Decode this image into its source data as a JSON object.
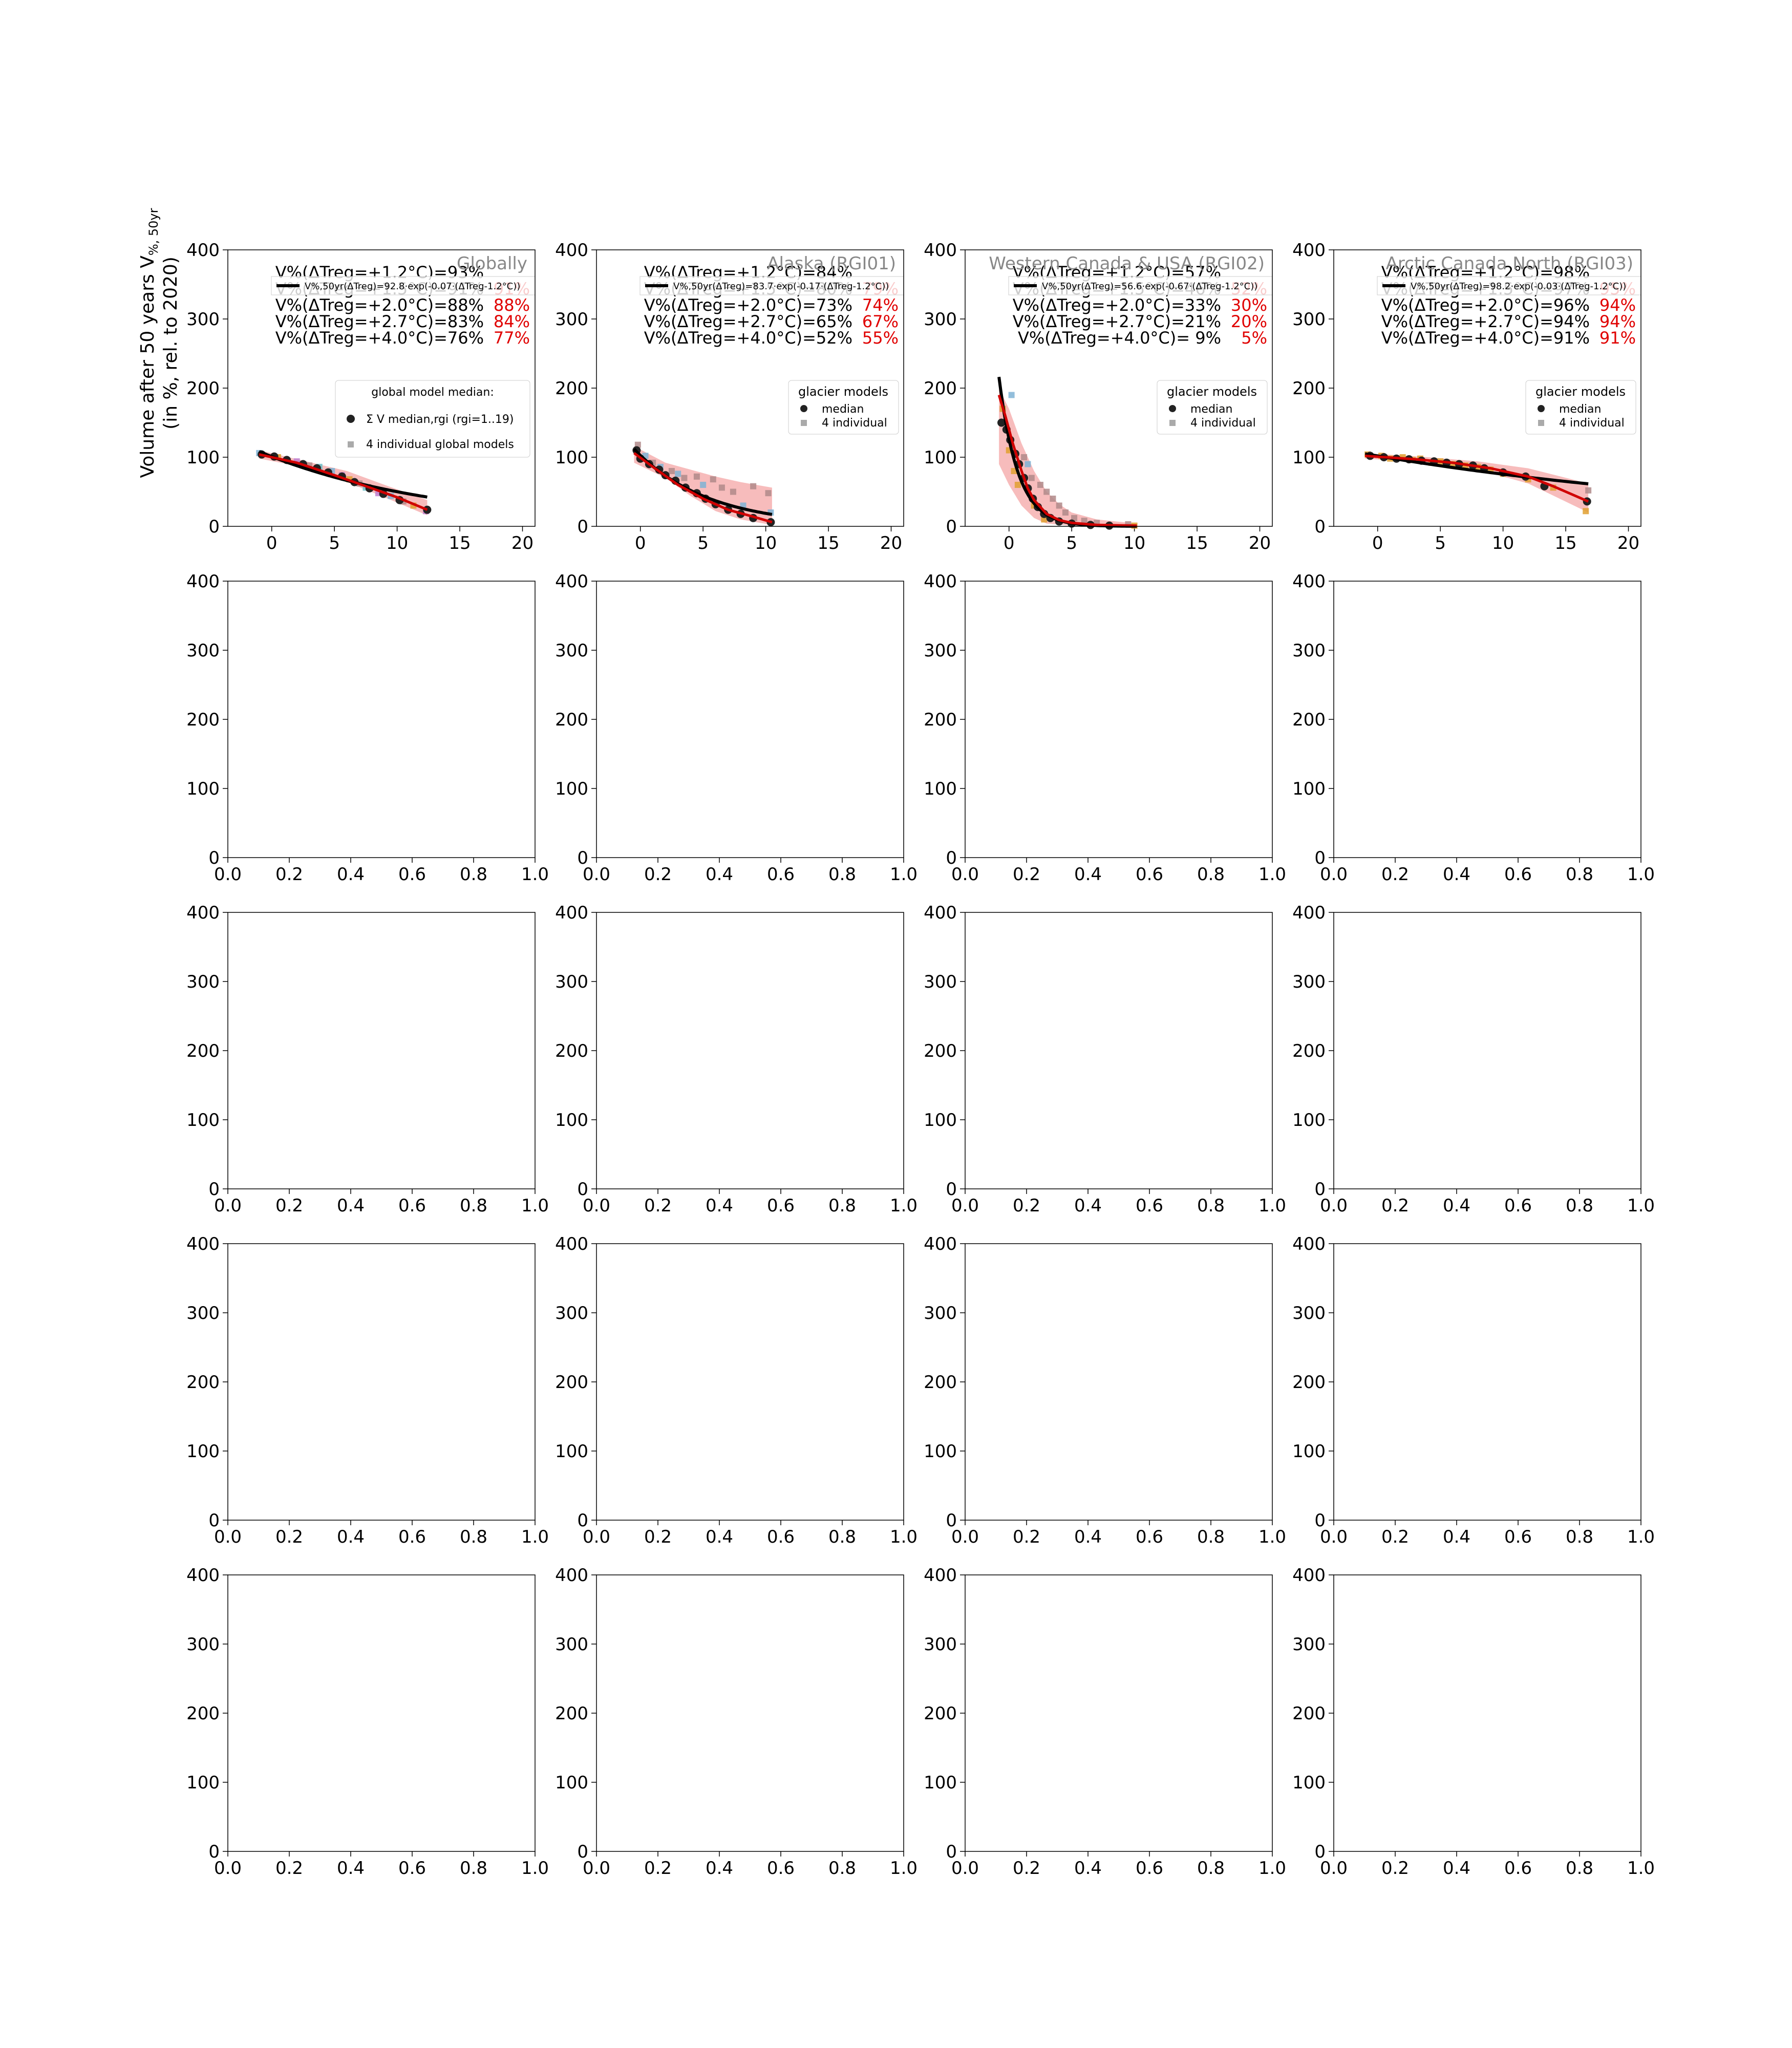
{
  "figure": {
    "ylabel_line1": "Volume after 50 years V",
    "ylabel_sub": "%, 50yr",
    "ylabel_line2": "(in %, rel. to 2020)"
  },
  "colors": {
    "fit_exp": "#000000",
    "fit_median": "#d00000",
    "band": "#f4a0a0",
    "median_marker": "#222222",
    "individual_marker": "#aaaaaa",
    "model_colors": [
      "#7fb3d5",
      "#e0a030",
      "#c080d0",
      "#b08a8a",
      "#6fc0c8"
    ],
    "percent_text": "#e00000",
    "title_text": "#888888"
  },
  "chart_data": [
    {
      "type": "scatter",
      "title": "Globally",
      "xlim": [
        -3.5,
        21
      ],
      "ylim": [
        0,
        400
      ],
      "xticks": [
        0,
        5,
        10,
        15,
        20
      ],
      "yticks": [
        0,
        100,
        200,
        300,
        400
      ],
      "legend_fit": "V%,50yr(ΔTreg)=92.8·exp(-0.07·(ΔTreg-1.2°C))",
      "legend_title": "global model median:",
      "legend_median": "Σ V median,rgi (rgi=1..19)",
      "legend_individual": "4 individual global models",
      "fit": {
        "a": 92.8,
        "b": 0.07,
        "x0": 1.2,
        "xmin": -1,
        "xmax": 12.4
      },
      "median_curve": [
        [
          -1,
          104
        ],
        [
          2,
          92
        ],
        [
          5,
          74
        ],
        [
          8,
          55
        ],
        [
          10,
          42
        ],
        [
          12.4,
          24
        ]
      ],
      "band": {
        "upper": [
          [
            -1,
            110
          ],
          [
            3,
            93
          ],
          [
            6,
            80
          ],
          [
            9,
            60
          ],
          [
            12.4,
            38
          ]
        ],
        "lower": [
          [
            -1,
            98
          ],
          [
            3,
            84
          ],
          [
            6,
            64
          ],
          [
            9,
            42
          ],
          [
            12.4,
            16
          ]
        ]
      },
      "median_points": [
        [
          -0.8,
          104
        ],
        [
          0.2,
          101
        ],
        [
          1.2,
          96
        ],
        [
          2.5,
          90
        ],
        [
          3.6,
          84
        ],
        [
          4.5,
          78
        ],
        [
          5.6,
          72
        ],
        [
          6.6,
          64
        ],
        [
          7.8,
          55
        ],
        [
          8.9,
          47
        ],
        [
          10.2,
          38
        ],
        [
          12.4,
          24
        ]
      ],
      "individual_points": [
        [
          -1,
          106,
          0
        ],
        [
          0.5,
          100,
          1
        ],
        [
          2,
          94,
          2
        ],
        [
          3,
          88,
          3
        ],
        [
          3.8,
          86,
          4
        ],
        [
          4.8,
          80,
          0
        ],
        [
          5.6,
          74,
          2
        ],
        [
          6.2,
          68,
          1
        ],
        [
          7,
          62,
          3
        ],
        [
          7.5,
          56,
          4
        ],
        [
          8.5,
          48,
          2
        ],
        [
          9.5,
          44,
          0
        ],
        [
          10.5,
          36,
          3
        ],
        [
          11.3,
          30,
          1
        ],
        [
          12.3,
          22,
          2
        ]
      ],
      "annot": [
        {
          "label": "V%(ΔTreg=+1.2°C)=93%",
          "pct": ""
        },
        {
          "label": "V%(ΔTreg=+1.5°C)=91%",
          "pct": "91%"
        },
        {
          "label": "V%(ΔTreg=+2.0°C)=88%",
          "pct": "88%"
        },
        {
          "label": "V%(ΔTreg=+2.7°C)=83%",
          "pct": "84%"
        },
        {
          "label": "V%(ΔTreg=+4.0°C)=76%",
          "pct": "77%"
        }
      ]
    },
    {
      "type": "scatter",
      "title": "Alaska (RGI01)",
      "xlim": [
        -3.5,
        21
      ],
      "ylim": [
        0,
        400
      ],
      "xticks": [
        0,
        5,
        10,
        15,
        20
      ],
      "yticks": [
        0,
        100,
        200,
        300,
        400
      ],
      "legend_fit": "V%,50yr(ΔTreg)=83.7·exp(-0.17·(ΔTreg-1.2°C))",
      "legend_title": "glacier models",
      "legend_median": "median",
      "legend_individual": "4 individual",
      "fit": {
        "a": 83.7,
        "b": 0.17,
        "x0": 1.2,
        "xmin": -0.5,
        "xmax": 10.5
      },
      "median_curve": [
        [
          -0.5,
          106
        ],
        [
          1,
          86
        ],
        [
          3,
          60
        ],
        [
          5,
          40
        ],
        [
          7,
          24
        ],
        [
          9,
          14
        ],
        [
          10.5,
          6
        ]
      ],
      "band": {
        "upper": [
          [
            -0.5,
            116
          ],
          [
            2,
            92
          ],
          [
            4,
            82
          ],
          [
            6,
            72
          ],
          [
            8,
            64
          ],
          [
            10.5,
            56
          ]
        ],
        "lower": [
          [
            -0.5,
            92
          ],
          [
            2,
            70
          ],
          [
            4,
            44
          ],
          [
            6,
            22
          ],
          [
            8,
            10
          ],
          [
            10.5,
            2
          ]
        ]
      },
      "median_points": [
        [
          -0.3,
          110
        ],
        [
          0,
          98
        ],
        [
          0.7,
          90
        ],
        [
          1.5,
          82
        ],
        [
          2,
          74
        ],
        [
          2.8,
          66
        ],
        [
          3.6,
          56
        ],
        [
          4.5,
          48
        ],
        [
          5.2,
          40
        ],
        [
          6,
          32
        ],
        [
          7,
          24
        ],
        [
          8,
          18
        ],
        [
          9,
          12
        ],
        [
          10.4,
          6
        ]
      ],
      "individual_points": [
        [
          -0.2,
          118,
          3
        ],
        [
          0.4,
          102,
          0
        ],
        [
          1,
          92,
          3
        ],
        [
          1.6,
          86,
          0
        ],
        [
          2.5,
          80,
          3
        ],
        [
          3,
          76,
          0
        ],
        [
          3.5,
          70,
          3
        ],
        [
          4.5,
          72,
          3
        ],
        [
          5,
          60,
          0
        ],
        [
          5.8,
          68,
          3
        ],
        [
          6.5,
          56,
          3
        ],
        [
          7.4,
          50,
          3
        ],
        [
          8.2,
          30,
          0
        ],
        [
          9,
          58,
          3
        ],
        [
          10.2,
          48,
          3
        ],
        [
          10.4,
          20,
          0
        ]
      ],
      "annot": [
        {
          "label": "V%(ΔTreg=+1.2°C)=84%",
          "pct": ""
        },
        {
          "label": "V%(ΔTreg=+1.5°C)=80%",
          "pct": "79%"
        },
        {
          "label": "V%(ΔTreg=+2.0°C)=73%",
          "pct": "74%"
        },
        {
          "label": "V%(ΔTreg=+2.7°C)=65%",
          "pct": "67%"
        },
        {
          "label": "V%(ΔTreg=+4.0°C)=52%",
          "pct": "55%"
        }
      ]
    },
    {
      "type": "scatter",
      "title": "Western Canada & USA (RGI02)",
      "xlim": [
        -3.5,
        21
      ],
      "ylim": [
        0,
        400
      ],
      "xticks": [
        0,
        5,
        10,
        15,
        20
      ],
      "yticks": [
        0,
        100,
        200,
        300,
        400
      ],
      "legend_fit": "V%,50yr(ΔTreg)=56.6·exp(-0.67·(ΔTreg-1.2°C))",
      "legend_title": "glacier models",
      "legend_median": "median",
      "legend_individual": "4 individual",
      "fit": {
        "a": 56.6,
        "b": 0.67,
        "x0": 1.2,
        "xmin": -0.8,
        "xmax": 10.2
      },
      "median_curve": [
        [
          -0.8,
          190
        ],
        [
          -0.3,
          160
        ],
        [
          0.3,
          120
        ],
        [
          1,
          80
        ],
        [
          1.5,
          55
        ],
        [
          2,
          38
        ],
        [
          3,
          18
        ],
        [
          4,
          9
        ],
        [
          5,
          5
        ],
        [
          7,
          2
        ],
        [
          10.2,
          1
        ]
      ],
      "band": {
        "upper": [
          [
            -0.8,
            200
          ],
          [
            0,
            170
          ],
          [
            1,
            120
          ],
          [
            2,
            80
          ],
          [
            3,
            50
          ],
          [
            4,
            32
          ],
          [
            5,
            20
          ],
          [
            7,
            10
          ],
          [
            10.2,
            4
          ]
        ],
        "lower": [
          [
            -0.8,
            90
          ],
          [
            0,
            60
          ],
          [
            1,
            30
          ],
          [
            2,
            12
          ],
          [
            3,
            4
          ],
          [
            5,
            1
          ],
          [
            10.2,
            0
          ]
        ]
      },
      "median_points": [
        [
          -0.6,
          150
        ],
        [
          -0.2,
          140
        ],
        [
          0.1,
          125
        ],
        [
          0.5,
          105
        ],
        [
          0.8,
          90
        ],
        [
          1.2,
          70
        ],
        [
          1.5,
          55
        ],
        [
          1.9,
          40
        ],
        [
          2.3,
          28
        ],
        [
          2.8,
          18
        ],
        [
          3.3,
          12
        ],
        [
          4,
          7
        ],
        [
          5,
          4
        ],
        [
          6.5,
          2
        ],
        [
          8,
          1
        ]
      ],
      "individual_points": [
        [
          -0.5,
          170,
          1
        ],
        [
          0.2,
          190,
          0
        ],
        [
          0,
          110,
          1
        ],
        [
          0.4,
          80,
          1
        ],
        [
          0.7,
          60,
          1
        ],
        [
          1.2,
          100,
          3
        ],
        [
          1.5,
          90,
          0
        ],
        [
          1.8,
          70,
          3
        ],
        [
          2,
          30,
          1
        ],
        [
          2.5,
          60,
          3
        ],
        [
          3,
          50,
          3
        ],
        [
          3.5,
          40,
          3
        ],
        [
          2.8,
          10,
          1
        ],
        [
          4,
          30,
          3
        ],
        [
          4.5,
          20,
          3
        ],
        [
          5.2,
          12,
          3
        ],
        [
          6,
          8,
          3
        ],
        [
          7,
          5,
          3
        ],
        [
          9.5,
          3,
          3
        ],
        [
          10,
          1,
          1
        ]
      ],
      "annot": [
        {
          "label": "V%(ΔTreg=+1.2°C)=57%",
          "pct": ""
        },
        {
          "label": "V%(ΔTreg=+1.5°C)=46%",
          "pct": "52%"
        },
        {
          "label": "V%(ΔTreg=+2.0°C)=33%",
          "pct": "30%"
        },
        {
          "label": "V%(ΔTreg=+2.7°C)=21%",
          "pct": "20%"
        },
        {
          "label": "V%(ΔTreg=+4.0°C)=  9%",
          "pct": "5%"
        }
      ]
    },
    {
      "type": "scatter",
      "title": "Arctic Canada North (RGI03)",
      "xlim": [
        -3.5,
        21
      ],
      "ylim": [
        0,
        400
      ],
      "xticks": [
        0,
        5,
        10,
        15,
        20
      ],
      "yticks": [
        0,
        100,
        200,
        300,
        400
      ],
      "legend_fit": "V%,50yr(ΔTreg)=98.2·exp(-0.03·(ΔTreg-1.2°C))",
      "legend_title": "glacier models",
      "legend_median": "median",
      "legend_individual": "4 individual",
      "fit": {
        "a": 98.2,
        "b": 0.03,
        "x0": 1.2,
        "xmin": -1,
        "xmax": 16.8
      },
      "median_curve": [
        [
          -1,
          102
        ],
        [
          3,
          97
        ],
        [
          6,
          92
        ],
        [
          9,
          84
        ],
        [
          12,
          72
        ],
        [
          14,
          58
        ],
        [
          16.8,
          36
        ]
      ],
      "band": {
        "upper": [
          [
            -1,
            106
          ],
          [
            4,
            100
          ],
          [
            8,
            94
          ],
          [
            12,
            84
          ],
          [
            16.8,
            62
          ]
        ],
        "lower": [
          [
            -1,
            98
          ],
          [
            4,
            92
          ],
          [
            8,
            82
          ],
          [
            12,
            62
          ],
          [
            16.8,
            20
          ]
        ]
      },
      "median_points": [
        [
          -0.6,
          102
        ],
        [
          0.5,
          100
        ],
        [
          1.5,
          98
        ],
        [
          2.5,
          97
        ],
        [
          3.5,
          95
        ],
        [
          4.5,
          94
        ],
        [
          5.5,
          92
        ],
        [
          6.5,
          90
        ],
        [
          7.6,
          88
        ],
        [
          8.5,
          84
        ],
        [
          10,
          78
        ],
        [
          11.8,
          72
        ],
        [
          13.3,
          58
        ],
        [
          16.7,
          36
        ]
      ],
      "individual_points": [
        [
          -0.8,
          104,
          1
        ],
        [
          0.3,
          102,
          1
        ],
        [
          1,
          98,
          1
        ],
        [
          2,
          100,
          1
        ],
        [
          2.8,
          96,
          1
        ],
        [
          3.4,
          98,
          1
        ],
        [
          4.3,
          92,
          1
        ],
        [
          5,
          94,
          1
        ],
        [
          6,
          90,
          1
        ],
        [
          7,
          88,
          1
        ],
        [
          8,
          86,
          1
        ],
        [
          9,
          82,
          1
        ],
        [
          10,
          76,
          1
        ],
        [
          12,
          68,
          1
        ],
        [
          14,
          56,
          1
        ],
        [
          16.6,
          22,
          1
        ],
        [
          16.8,
          52,
          3
        ]
      ],
      "annot": [
        {
          "label": "V%(ΔTreg=+1.2°C)=98%",
          "pct": ""
        },
        {
          "label": "V%(ΔTreg=+1.5°C)=97%",
          "pct": "95%"
        },
        {
          "label": "V%(ΔTreg=+2.0°C)=96%",
          "pct": "94%"
        },
        {
          "label": "V%(ΔTreg=+2.7°C)=94%",
          "pct": "94%"
        },
        {
          "label": "V%(ΔTreg=+4.0°C)=91%",
          "pct": "91%"
        }
      ]
    },
    {
      "type": "scatter",
      "empty": true,
      "xlim": [
        0,
        1
      ],
      "ylim": [
        0,
        400
      ],
      "xticks": [
        0.0,
        0.2,
        0.4,
        0.6,
        0.8,
        1.0
      ],
      "yticks": [
        0,
        100,
        200,
        300,
        400
      ]
    }
  ]
}
